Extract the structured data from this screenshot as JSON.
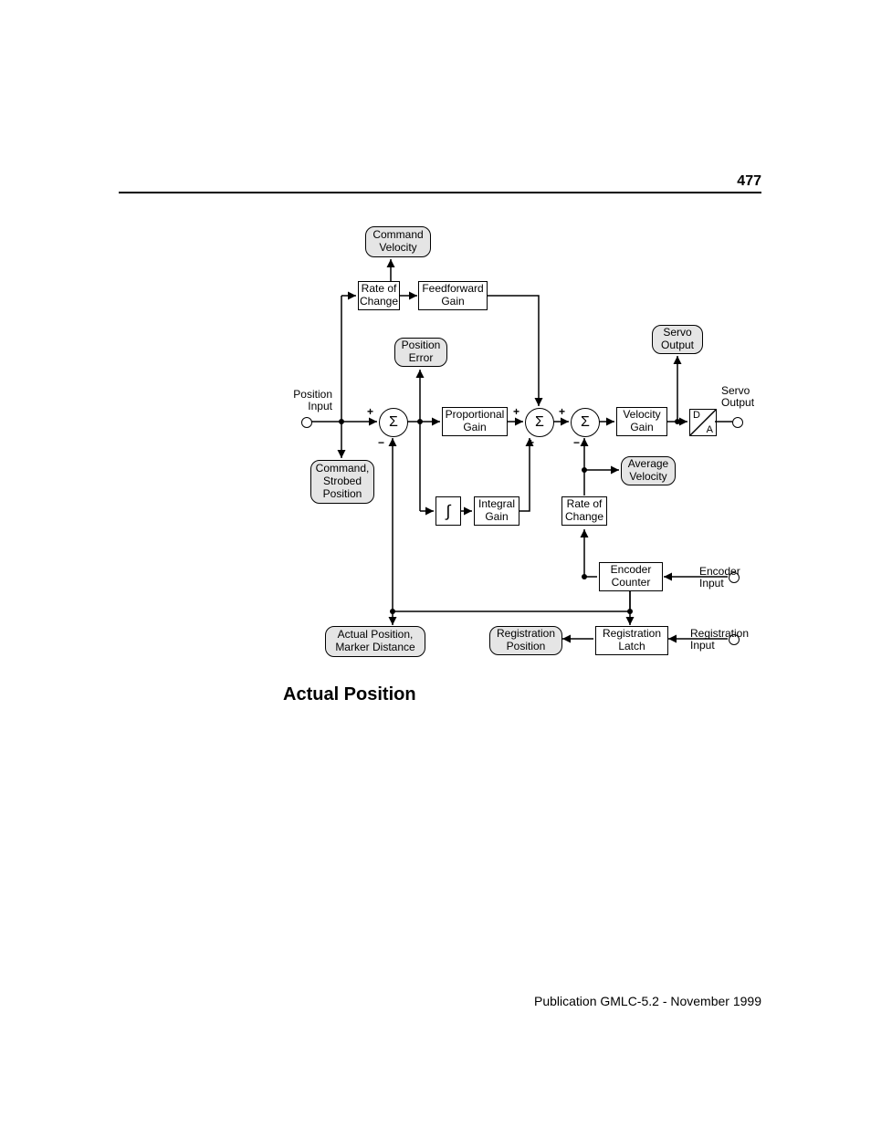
{
  "page_number": "477",
  "footer": "Publication GMLC-5.2 - November 1999",
  "section_title": "Actual Position",
  "diagram": {
    "type": "flowchart",
    "background_color": "#ffffff",
    "node_border_color": "#000000",
    "rounded_fill": "#e5e5e5",
    "line_color": "#000000",
    "font_size": 12,
    "sigma": "Σ",
    "nodes": {
      "cmd_vel": {
        "label": "Command\nVelocity"
      },
      "rate_change_1": {
        "label": "Rate of\nChange"
      },
      "ff_gain": {
        "label": "Feedforward\nGain"
      },
      "pos_error": {
        "label": "Position\nError"
      },
      "prop_gain": {
        "label": "Proportional\nGain"
      },
      "servo_out_box": {
        "label": "Servo\nOutput"
      },
      "vel_gain": {
        "label": "Velocity\nGain"
      },
      "cmd_strobed": {
        "label": "Command,\nStrobed\nPosition"
      },
      "int_gain": {
        "label": "Integral\nGain"
      },
      "rate_change_2": {
        "label": "Rate of\nChange"
      },
      "avg_vel": {
        "label": "Average\nVelocity"
      },
      "actual_pos": {
        "label": "Actual Position,\nMarker Distance"
      },
      "reg_pos": {
        "label": "Registration\nPosition"
      },
      "reg_latch": {
        "label": "Registration\nLatch"
      },
      "encoder_ctr": {
        "label": "Encoder\nCounter"
      },
      "da": {
        "label_top": "D",
        "label_bot": "A"
      }
    },
    "ports": {
      "pos_in": {
        "label": "Position\nInput"
      },
      "servo_out": {
        "label": "Servo\nOutput"
      },
      "enc_in": {
        "label": "Encoder\nInput"
      },
      "reg_in": {
        "label": "Registration\nInput"
      }
    },
    "signs": {
      "plus": "+",
      "minus": "−"
    }
  }
}
